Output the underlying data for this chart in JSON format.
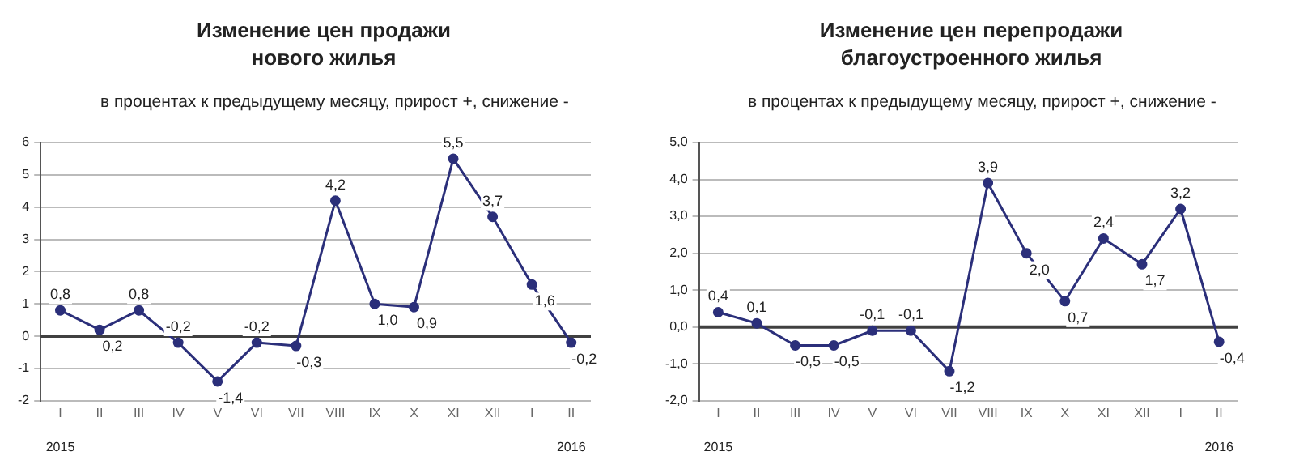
{
  "chart_data": [
    {
      "type": "line",
      "title": "Изменение цен продажи нового жилья",
      "subtitle": "в процентах к предыдущему месяцу, прирост +, снижение -",
      "categories": [
        "I",
        "II",
        "III",
        "IV",
        "V",
        "VI",
        "VII",
        "VIII",
        "IX",
        "X",
        "XI",
        "XII",
        "I",
        "II"
      ],
      "series": [
        {
          "color": "#2b2f7a",
          "values": [
            0.8,
            0.2,
            0.8,
            -0.2,
            -1.4,
            -0.2,
            -0.3,
            4.2,
            1.0,
            0.9,
            5.5,
            3.7,
            1.6,
            -0.2
          ],
          "value_labels": [
            "0,8",
            "0,2",
            "0,8",
            "-0,2",
            "-1,4",
            "-0,2",
            "-0,3",
            "4,2",
            "1,0",
            "0,9",
            "5,5",
            "3,7",
            "1,6",
            "-0,2"
          ]
        }
      ],
      "ylim": [
        -2,
        6
      ],
      "yticks": [
        -2,
        -1,
        0,
        1,
        2,
        3,
        4,
        5,
        6
      ],
      "grid": "y",
      "legend": false,
      "marker": "circle",
      "line_style": "solid",
      "ref_lines": [
        {
          "axis": "y",
          "value": 0,
          "color": "#404040"
        }
      ],
      "annotations": [
        "2015",
        "2016"
      ]
    },
    {
      "type": "line",
      "title": "Изменение цен перепродажи благоустроенного жилья",
      "subtitle": "в процентах к предыдущему месяцу, прирост +, снижение -",
      "categories": [
        "I",
        "II",
        "III",
        "IV",
        "V",
        "VI",
        "VII",
        "VIII",
        "IX",
        "X",
        "XI",
        "XII",
        "I",
        "II"
      ],
      "series": [
        {
          "color": "#2b2f7a",
          "values": [
            0.4,
            0.1,
            -0.5,
            -0.5,
            -0.1,
            -0.1,
            -1.2,
            3.9,
            2.0,
            0.7,
            2.4,
            1.7,
            3.2,
            -0.4
          ],
          "value_labels": [
            "0,4",
            "0,1",
            "-0,5",
            "-0,5",
            "-0,1",
            "-0,1",
            "-1,2",
            "3,9",
            "2,0",
            "0,7",
            "2,4",
            "1,7",
            "3,2",
            "-0,4"
          ]
        }
      ],
      "ylim": [
        -2,
        5
      ],
      "yticks": [
        {
          "value": -2,
          "label": "-2,0"
        },
        {
          "value": -1,
          "label": "-1,0"
        },
        {
          "value": 0,
          "label": "0,0"
        },
        {
          "value": 1,
          "label": "1,0"
        },
        {
          "value": 2,
          "label": "2,0"
        },
        {
          "value": 3,
          "label": "3,0"
        },
        {
          "value": 4,
          "label": "4,0"
        },
        {
          "value": 5,
          "label": "5,0"
        }
      ],
      "grid": "y",
      "legend": false,
      "marker": "circle",
      "line_style": "solid",
      "ref_lines": [
        {
          "axis": "y",
          "value": 0,
          "color": "#404040"
        }
      ],
      "annotations": [
        "2015",
        "2016"
      ]
    }
  ]
}
